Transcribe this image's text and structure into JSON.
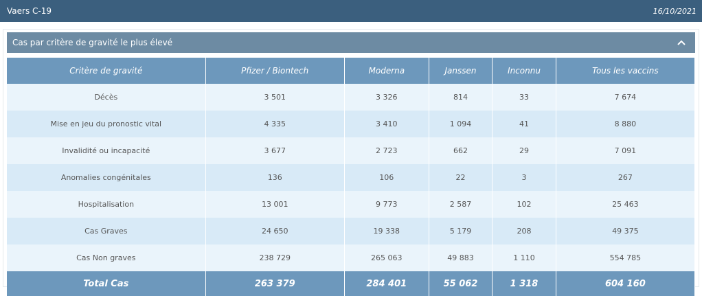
{
  "header": {
    "title": "Vaers C-19",
    "date": "16/10/2021"
  },
  "panel": {
    "title": "Cas par critère de gravité le plus élevé"
  },
  "table": {
    "columns": [
      "Critère de gravité",
      "Pfizer / Biontech",
      "Moderna",
      "Janssen",
      "Inconnu",
      "Tous les vaccins"
    ],
    "rows": [
      [
        "Décès",
        "3 501",
        "3 326",
        "814",
        "33",
        "7 674"
      ],
      [
        "Mise en jeu du pronostic vital",
        "4 335",
        "3 410",
        "1 094",
        "41",
        "8 880"
      ],
      [
        "Invalidité ou incapacité",
        "3 677",
        "2 723",
        "662",
        "29",
        "7 091"
      ],
      [
        "Anomalies congénitales",
        "136",
        "106",
        "22",
        "3",
        "267"
      ],
      [
        "Hospitalisation",
        "13 001",
        "9 773",
        "2 587",
        "102",
        "25 463"
      ],
      [
        "Cas Graves",
        "24 650",
        "19 338",
        "5 179",
        "208",
        "49 375"
      ],
      [
        "Cas Non graves",
        "238 729",
        "265 063",
        "49 883",
        "1 110",
        "554 785"
      ]
    ],
    "total": [
      "Total Cas",
      "263 379",
      "284 401",
      "55 062",
      "1 318",
      "604 160"
    ]
  }
}
